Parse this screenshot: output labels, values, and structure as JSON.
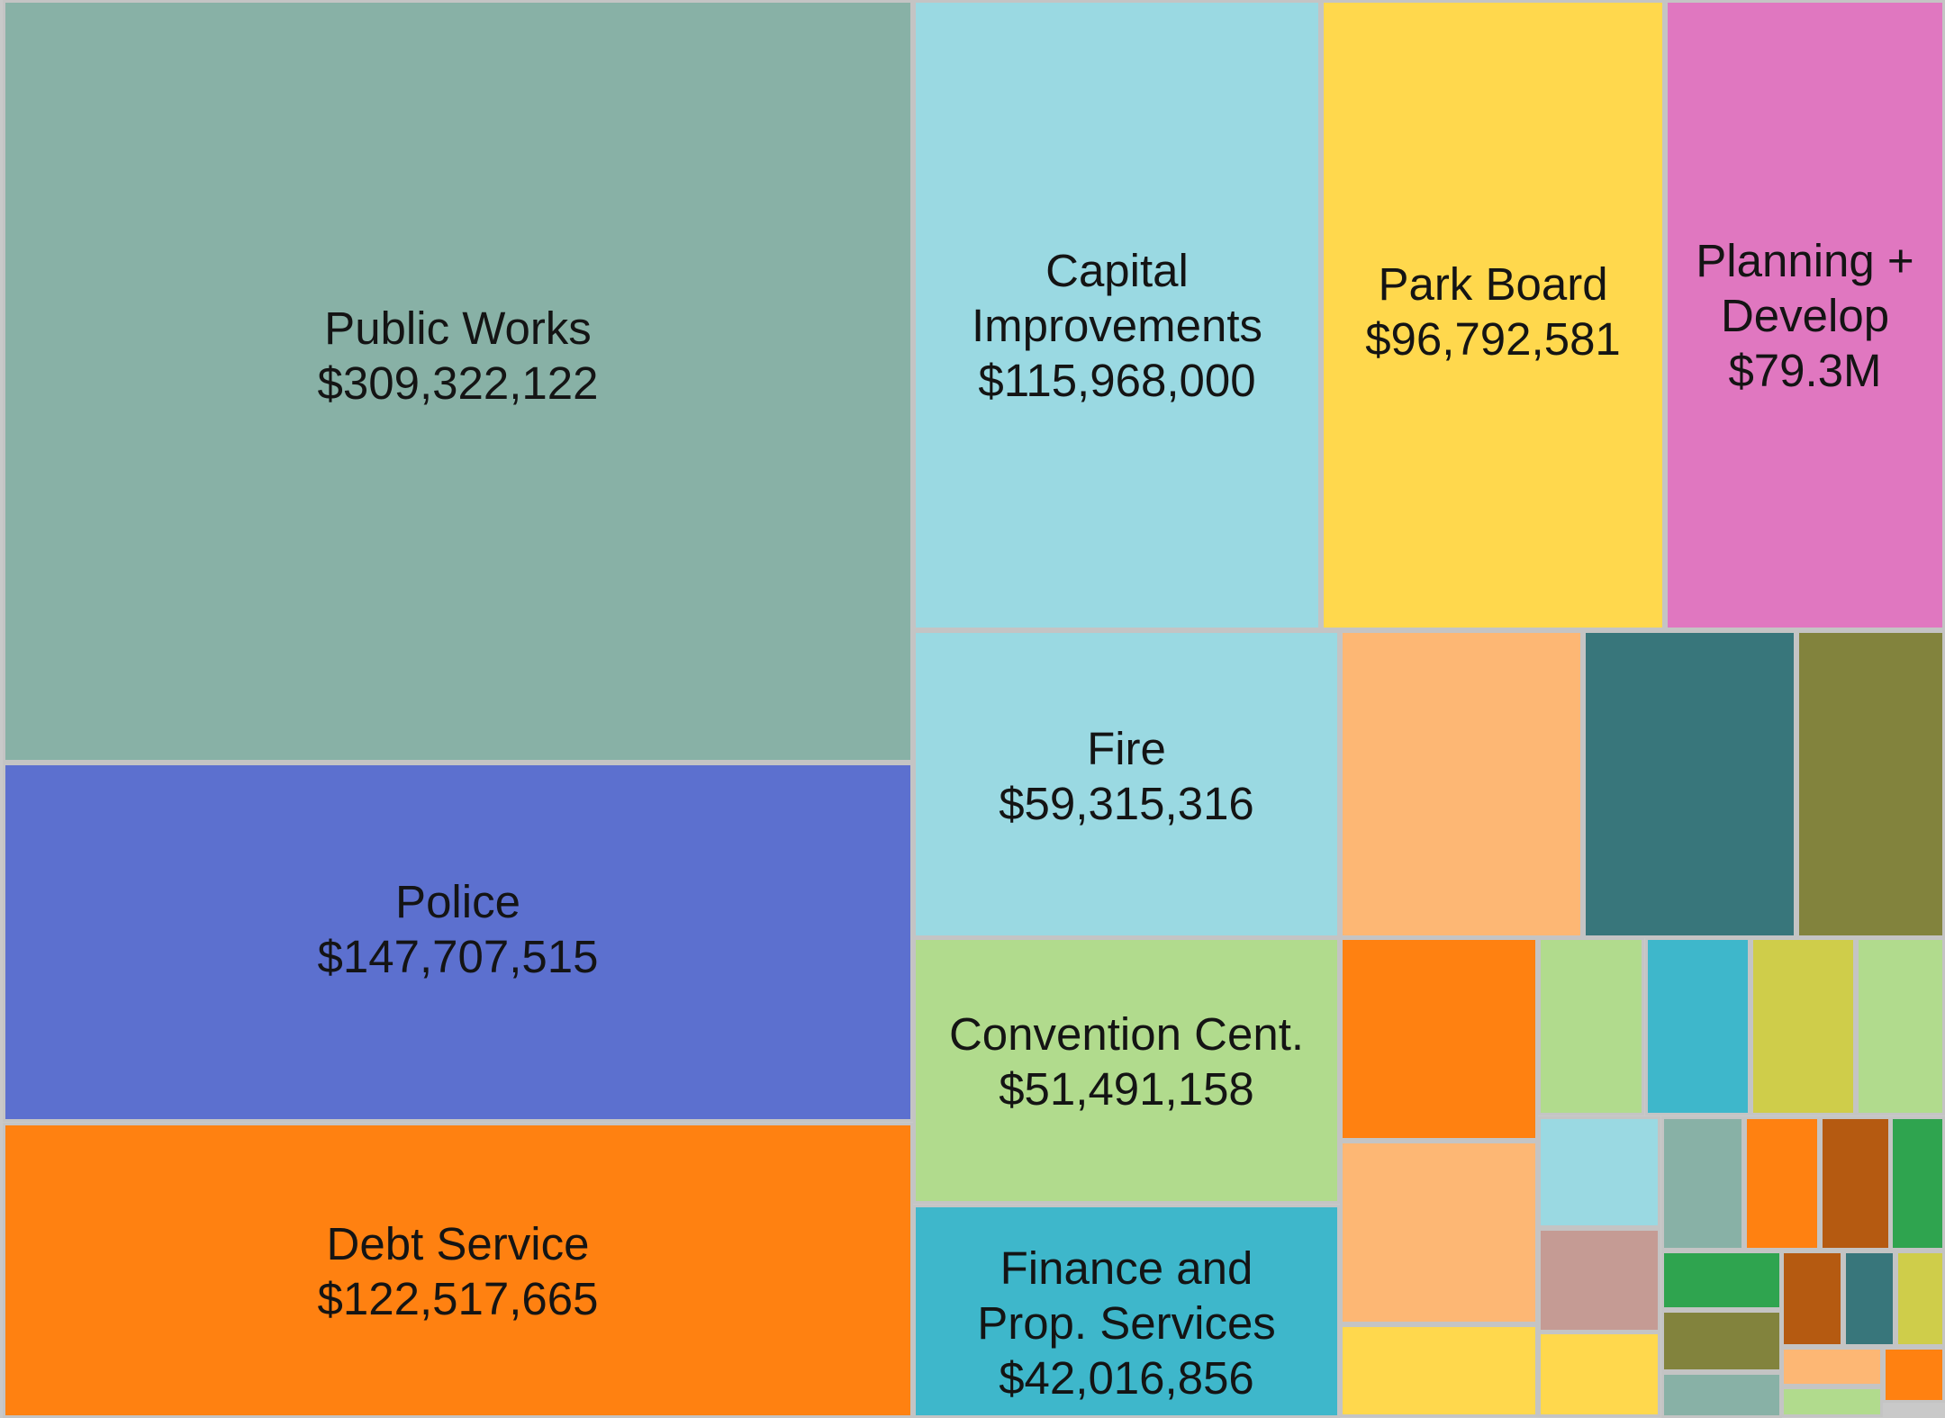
{
  "chart_data": {
    "type": "treemap",
    "tiles": [
      {
        "id": "public-works",
        "name": "Public Works",
        "value_label": "$309,322,122",
        "value": 309322122,
        "color": "#88b1a6"
      },
      {
        "id": "police",
        "name": "Police",
        "value_label": "$147,707,515",
        "value": 147707515,
        "color": "#5c70cf"
      },
      {
        "id": "debt-service",
        "name": "Debt Service",
        "value_label": "$122,517,665",
        "value": 122517665,
        "color": "#ff8111"
      },
      {
        "id": "capital-improvements",
        "name": "Capital\nImprovements",
        "value_label": "$115,968,000",
        "value": 115968000,
        "color": "#9ad9e2"
      },
      {
        "id": "park-board",
        "name": "Park Board",
        "value_label": "$96,792,581",
        "value": 96792581,
        "color": "#ffd84d"
      },
      {
        "id": "planning-develop",
        "name": "Planning +\nDevelop",
        "value_label": "$79.3M",
        "value": 79300000,
        "color": "#e077c0"
      },
      {
        "id": "fire",
        "name": "Fire",
        "value_label": "$59,315,316",
        "value": 59315316,
        "color": "#9ad9e2"
      },
      {
        "id": "convention-center",
        "name": "Convention Cent.",
        "value_label": "$51,491,158",
        "value": 51491158,
        "color": "#b1db8d"
      },
      {
        "id": "finance-prop-services",
        "name": "Finance and\nProp. Services",
        "value_label": "$42,016,856",
        "value": 42016856,
        "color": "#3eb7cb"
      },
      {
        "id": "unlabeled-1",
        "color": "#fdb774"
      },
      {
        "id": "unlabeled-2",
        "color": "#38767b"
      },
      {
        "id": "unlabeled-3",
        "color": "#82833d"
      },
      {
        "id": "unlabeled-4",
        "color": "#ff8111"
      },
      {
        "id": "unlabeled-5",
        "color": "#b1db8d"
      },
      {
        "id": "unlabeled-6",
        "color": "#3eb7cb"
      },
      {
        "id": "unlabeled-7",
        "color": "#cfcd4a"
      },
      {
        "id": "unlabeled-8",
        "color": "#b1db8d"
      },
      {
        "id": "unlabeled-9",
        "color": "#fdb774"
      },
      {
        "id": "unlabeled-10",
        "color": "#9ad9e2"
      },
      {
        "id": "unlabeled-11",
        "color": "#88b1a6"
      },
      {
        "id": "unlabeled-12",
        "color": "#ff8111"
      },
      {
        "id": "unlabeled-13",
        "color": "#b55a11"
      },
      {
        "id": "unlabeled-14",
        "color": "#2fa44f"
      },
      {
        "id": "unlabeled-15",
        "color": "#ffd84d"
      },
      {
        "id": "unlabeled-16",
        "color": "#c59b94"
      },
      {
        "id": "unlabeled-17",
        "color": "#2fa44f"
      },
      {
        "id": "unlabeled-18",
        "color": "#b55a11"
      },
      {
        "id": "unlabeled-19",
        "color": "#38767b"
      },
      {
        "id": "unlabeled-20",
        "color": "#cfcd4a"
      },
      {
        "id": "unlabeled-21",
        "color": "#ffd84d"
      },
      {
        "id": "unlabeled-22",
        "color": "#82833d"
      },
      {
        "id": "unlabeled-23",
        "color": "#fdb774"
      },
      {
        "id": "unlabeled-24",
        "color": "#ff8111"
      },
      {
        "id": "unlabeled-25",
        "color": "#88b1a6"
      },
      {
        "id": "unlabeled-26",
        "color": "#b1db8d"
      }
    ]
  }
}
